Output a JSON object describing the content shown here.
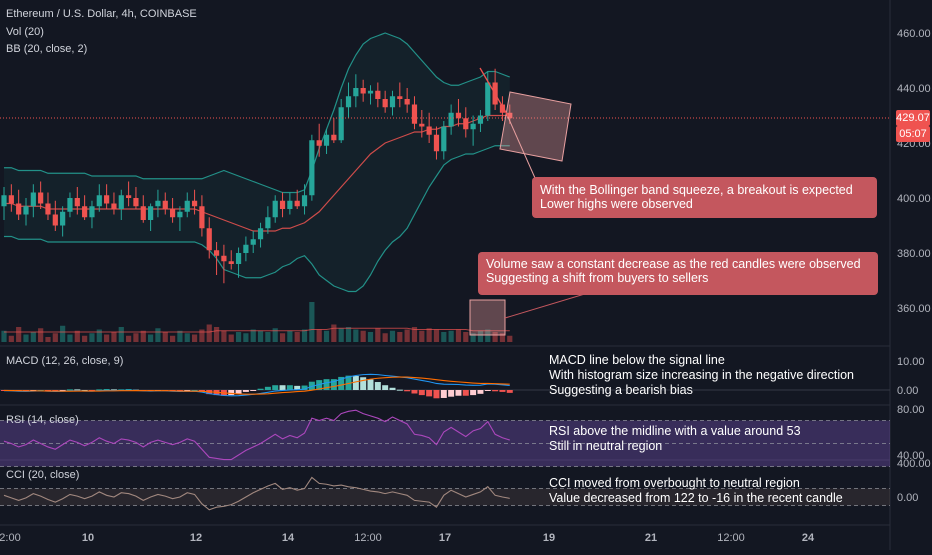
{
  "header": {
    "title": "Ethereum / U.S. Dollar, 4h, COINBASE",
    "vol": "Vol (20)",
    "bb": "BB (20, close, 2)"
  },
  "price_tags": {
    "last": "429.07",
    "countdown": "05:07"
  },
  "panes": {
    "macd": {
      "label": "MACD (12, 26, close, 9)",
      "ticks": [
        "10.00",
        "0.00"
      ]
    },
    "rsi": {
      "label": "RSI (14, close)",
      "ticks": [
        "80.00",
        "40.00"
      ]
    },
    "cci": {
      "label": "CCI (20, close)",
      "ticks": [
        "400.00",
        "0.00"
      ]
    }
  },
  "annotations": {
    "bollinger": [
      "With the Bollinger band squeeze, a breakout is expected",
      "Lower highs were observed"
    ],
    "volume": [
      "Volume saw a constant decrease as the red candles were observed",
      "Suggesting a shift from buyers to sellers"
    ],
    "macd": [
      "MACD line below the signal line",
      "With histogram size increasing in the negative direction",
      "Suggesting a bearish bias"
    ],
    "rsi": [
      "RSI above the midline with a value around 53",
      "Still in neutral region"
    ],
    "cci": [
      "CCI moved from overbought to neutral region",
      "Value decreased from 122 to -16 in the recent candle"
    ]
  },
  "colors": {
    "background": "#131722",
    "up": "#26a69a",
    "down": "#ef5350",
    "bb_band": "#26a69a",
    "bb_basis": "#ef5350",
    "rsi_band": "#7e57c2",
    "cci_band": "#8d6e63",
    "callout": "#c4575e"
  },
  "chart_data": {
    "type": "candlestick",
    "title": "Ethereum / U.S. Dollar, 4h, COINBASE",
    "x_ticks": [
      "2:00",
      "10",
      "12",
      "14",
      "12:00",
      "17",
      "19",
      "21",
      "12:00",
      "24"
    ],
    "price_ticks": [
      460,
      440,
      420,
      400,
      380,
      360
    ],
    "ylim": [
      348,
      468
    ],
    "last_price": 429.07,
    "candles": [
      [
        397,
        404,
        392,
        401
      ],
      [
        401,
        405,
        395,
        398
      ],
      [
        398,
        403,
        392,
        394
      ],
      [
        394,
        400,
        390,
        397
      ],
      [
        397,
        405,
        393,
        402
      ],
      [
        402,
        406,
        396,
        398
      ],
      [
        398,
        402,
        392,
        394
      ],
      [
        394,
        399,
        388,
        390
      ],
      [
        390,
        397,
        386,
        395
      ],
      [
        395,
        402,
        393,
        400
      ],
      [
        400,
        404,
        394,
        397
      ],
      [
        397,
        401,
        392,
        393
      ],
      [
        393,
        399,
        389,
        397
      ],
      [
        397,
        405,
        395,
        401
      ],
      [
        401,
        405,
        396,
        398
      ],
      [
        398,
        402,
        394,
        396
      ],
      [
        396,
        403,
        392,
        401
      ],
      [
        401,
        406,
        397,
        400
      ],
      [
        400,
        404,
        396,
        397
      ],
      [
        397,
        401,
        391,
        392
      ],
      [
        392,
        398,
        388,
        397
      ],
      [
        397,
        403,
        393,
        399
      ],
      [
        399,
        402,
        394,
        396
      ],
      [
        396,
        400,
        391,
        393
      ],
      [
        393,
        397,
        388,
        395
      ],
      [
        395,
        402,
        393,
        399
      ],
      [
        399,
        403,
        394,
        397
      ],
      [
        397,
        401,
        386,
        389
      ],
      [
        389,
        393,
        378,
        381
      ],
      [
        381,
        384,
        372,
        379
      ],
      [
        379,
        383,
        369,
        377
      ],
      [
        377,
        381,
        374,
        376
      ],
      [
        376,
        382,
        371,
        380
      ],
      [
        380,
        386,
        377,
        383
      ],
      [
        383,
        388,
        380,
        385
      ],
      [
        385,
        391,
        382,
        389
      ],
      [
        389,
        397,
        387,
        393
      ],
      [
        393,
        401,
        391,
        399
      ],
      [
        399,
        402,
        393,
        396
      ],
      [
        396,
        402,
        394,
        399
      ],
      [
        399,
        403,
        396,
        397
      ],
      [
        397,
        405,
        394,
        401
      ],
      [
        401,
        423,
        399,
        421
      ],
      [
        421,
        427,
        415,
        419
      ],
      [
        419,
        425,
        416,
        423
      ],
      [
        423,
        429,
        420,
        421
      ],
      [
        421,
        436,
        420,
        433
      ],
      [
        433,
        442,
        429,
        437
      ],
      [
        437,
        445,
        433,
        440
      ],
      [
        440,
        443,
        435,
        438
      ],
      [
        438,
        441,
        434,
        439
      ],
      [
        439,
        442,
        433,
        436
      ],
      [
        436,
        439,
        431,
        433
      ],
      [
        433,
        439,
        430,
        437
      ],
      [
        437,
        442,
        433,
        436
      ],
      [
        436,
        440,
        431,
        434
      ],
      [
        434,
        437,
        425,
        427
      ],
      [
        427,
        432,
        422,
        426
      ],
      [
        426,
        431,
        420,
        423
      ],
      [
        423,
        426,
        414,
        417
      ],
      [
        417,
        428,
        414,
        426
      ],
      [
        426,
        434,
        423,
        431
      ],
      [
        431,
        436,
        426,
        429
      ],
      [
        429,
        433,
        422,
        425
      ],
      [
        425,
        430,
        419,
        427
      ],
      [
        427,
        432,
        424,
        430
      ],
      [
        430,
        446,
        428,
        442
      ],
      [
        442,
        447,
        432,
        434
      ],
      [
        434,
        437,
        428,
        431
      ],
      [
        431,
        434,
        427,
        429
      ]
    ],
    "bb_upper": [
      411,
      411,
      410,
      410,
      410,
      410,
      409,
      409,
      409,
      409,
      409,
      409,
      408,
      408,
      408,
      408,
      408,
      408,
      408,
      407,
      407,
      407,
      407,
      407,
      407,
      407,
      407,
      407,
      408,
      409,
      410,
      409,
      408,
      407,
      406,
      405,
      404,
      403,
      402,
      402,
      402,
      403,
      410,
      418,
      425,
      432,
      440,
      447,
      452,
      456,
      458,
      459,
      460,
      459,
      458,
      456,
      453,
      450,
      447,
      444,
      442,
      441,
      441,
      442,
      443,
      444,
      446,
      446,
      445,
      444
    ],
    "bb_basis": [
      398,
      398,
      397,
      397,
      397,
      397,
      396,
      396,
      396,
      396,
      396,
      396,
      396,
      396,
      396,
      396,
      396,
      396,
      396,
      396,
      396,
      396,
      396,
      396,
      396,
      396,
      396,
      395,
      394,
      393,
      392,
      391,
      390,
      389,
      388,
      388,
      388,
      388,
      389,
      389,
      390,
      391,
      393,
      395,
      398,
      401,
      404,
      407,
      410,
      413,
      416,
      418,
      420,
      421,
      422,
      423,
      424,
      424,
      425,
      425,
      426,
      426,
      427,
      427,
      428,
      429,
      430,
      430,
      430,
      430
    ],
    "bb_lower": [
      386,
      386,
      385,
      385,
      385,
      385,
      384,
      384,
      384,
      384,
      384,
      384,
      384,
      384,
      384,
      384,
      384,
      384,
      384,
      384,
      384,
      384,
      384,
      384,
      384,
      384,
      384,
      383,
      381,
      378,
      374,
      373,
      372,
      371,
      371,
      371,
      372,
      373,
      375,
      376,
      378,
      379,
      376,
      372,
      370,
      368,
      367,
      366,
      366,
      368,
      372,
      377,
      381,
      384,
      386,
      389,
      394,
      399,
      404,
      408,
      412,
      414,
      415,
      416,
      416,
      417,
      418,
      419,
      419,
      419
    ],
    "volume": [
      9,
      5,
      12,
      6,
      8,
      11,
      4,
      7,
      13,
      6,
      9,
      5,
      7,
      10,
      6,
      8,
      12,
      5,
      7,
      9,
      6,
      11,
      8,
      5,
      9,
      7,
      6,
      10,
      14,
      12,
      9,
      6,
      8,
      7,
      10,
      9,
      8,
      11,
      7,
      9,
      8,
      10,
      32,
      10,
      9,
      14,
      11,
      12,
      10,
      9,
      8,
      11,
      7,
      9,
      8,
      10,
      12,
      9,
      11,
      10,
      8,
      9,
      10,
      8,
      7,
      9,
      10,
      8,
      7,
      5
    ],
    "volume_ma": [
      8,
      8,
      8,
      8,
      8,
      8,
      8,
      8,
      8,
      8,
      8,
      8,
      8,
      8,
      8,
      8,
      8,
      8,
      8,
      8,
      8,
      8,
      8,
      8,
      8,
      8,
      8,
      8,
      8,
      9,
      9,
      9,
      9,
      9,
      9,
      9,
      9,
      9,
      9,
      9,
      9,
      9,
      10,
      10,
      10,
      11,
      11,
      11,
      11,
      11,
      11,
      11,
      11,
      11,
      11,
      11,
      10,
      10,
      10,
      10,
      10,
      10,
      10,
      10,
      9,
      9,
      9,
      9,
      9,
      9
    ],
    "macd": [
      -0.5,
      -0.6,
      -0.8,
      -0.9,
      -0.7,
      -0.6,
      -0.8,
      -1.0,
      -0.9,
      -0.6,
      -0.5,
      -0.7,
      -0.8,
      -0.5,
      -0.3,
      -0.4,
      -0.3,
      -0.2,
      -0.3,
      -0.6,
      -0.7,
      -0.6,
      -0.6,
      -0.8,
      -1.0,
      -0.9,
      -0.8,
      -1.4,
      -2.5,
      -3.2,
      -3.8,
      -4.0,
      -3.9,
      -3.5,
      -3.0,
      -2.4,
      -1.6,
      -0.7,
      -0.3,
      0.0,
      0.2,
      0.6,
      2.5,
      3.8,
      5.0,
      5.8,
      7.5,
      9.0,
      10.0,
      10.6,
      10.8,
      10.6,
      10.0,
      9.5,
      9.0,
      8.5,
      7.5,
      6.6,
      5.7,
      4.5,
      4.0,
      3.9,
      3.8,
      3.4,
      3.2,
      3.3,
      4.2,
      4.0,
      3.6,
      3.1
    ],
    "macd_signal": [
      -0.3,
      -0.4,
      -0.5,
      -0.6,
      -0.6,
      -0.6,
      -0.7,
      -0.7,
      -0.8,
      -0.8,
      -0.7,
      -0.7,
      -0.7,
      -0.7,
      -0.6,
      -0.6,
      -0.5,
      -0.5,
      -0.4,
      -0.5,
      -0.5,
      -0.5,
      -0.5,
      -0.6,
      -0.7,
      -0.8,
      -0.8,
      -0.9,
      -1.2,
      -1.6,
      -2.0,
      -2.4,
      -2.7,
      -2.9,
      -2.9,
      -2.8,
      -2.6,
      -2.2,
      -1.8,
      -1.5,
      -1.1,
      -0.8,
      -0.1,
      0.7,
      1.6,
      2.4,
      3.4,
      4.5,
      5.6,
      6.6,
      7.5,
      8.1,
      8.5,
      8.8,
      8.9,
      8.9,
      8.6,
      8.2,
      7.7,
      7.1,
      6.5,
      6.0,
      5.6,
      5.2,
      4.8,
      4.5,
      4.5,
      4.4,
      4.2,
      4.0
    ],
    "rsi": [
      52,
      50,
      47,
      49,
      53,
      50,
      47,
      45,
      49,
      53,
      51,
      48,
      51,
      55,
      52,
      50,
      54,
      53,
      51,
      47,
      51,
      53,
      51,
      49,
      51,
      54,
      52,
      45,
      38,
      37,
      36,
      36,
      40,
      44,
      47,
      50,
      54,
      58,
      54,
      57,
      55,
      59,
      72,
      70,
      72,
      70,
      76,
      78,
      79,
      76,
      74,
      72,
      69,
      73,
      70,
      67,
      58,
      57,
      55,
      49,
      60,
      64,
      60,
      56,
      61,
      63,
      69,
      58,
      55,
      53
    ],
    "cci": [
      20,
      -10,
      -40,
      -10,
      40,
      10,
      -30,
      -60,
      -20,
      30,
      10,
      -20,
      10,
      60,
      20,
      0,
      50,
      40,
      10,
      -40,
      0,
      30,
      10,
      -20,
      0,
      50,
      30,
      -80,
      -150,
      -120,
      -110,
      -90,
      -50,
      0,
      50,
      90,
      130,
      160,
      90,
      110,
      80,
      100,
      230,
      160,
      150,
      130,
      140,
      120,
      110,
      90,
      70,
      60,
      40,
      60,
      40,
      20,
      -40,
      -50,
      -60,
      -120,
      20,
      80,
      40,
      0,
      30,
      60,
      122,
      20,
      0,
      -16
    ],
    "rsi_levels": [
      70,
      50,
      30
    ],
    "cci_levels": [
      100,
      -100
    ]
  }
}
